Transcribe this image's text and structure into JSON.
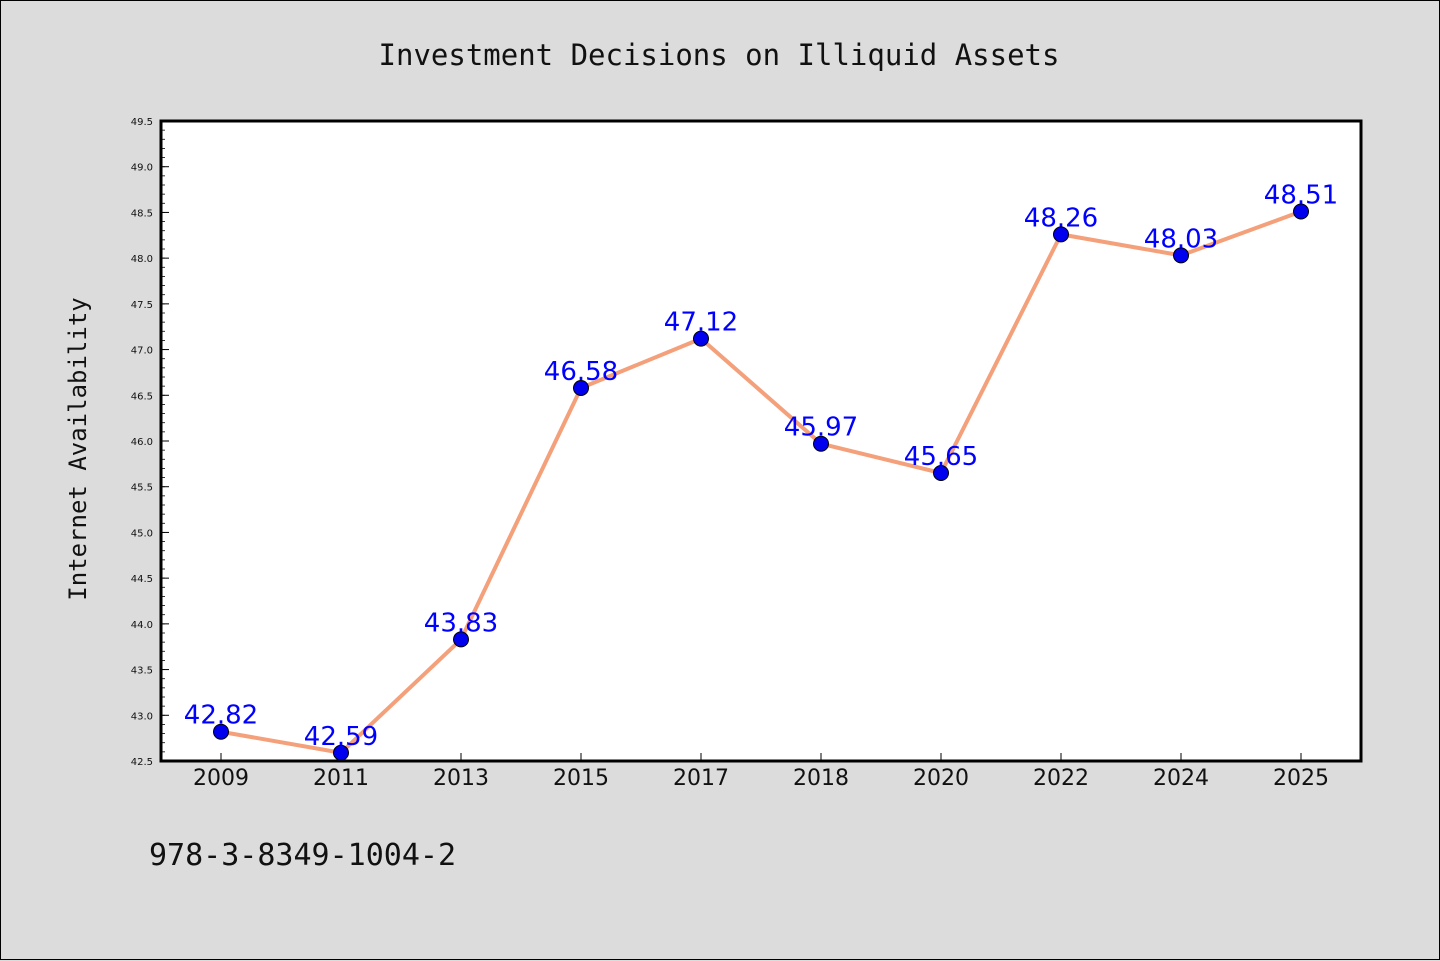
{
  "chart_data": {
    "type": "line",
    "title": "Investment Decisions on Illiquid Assets",
    "xlabel": "",
    "ylabel": "Internet Availability",
    "categories": [
      "2009",
      "2011",
      "2013",
      "2015",
      "2017",
      "2018",
      "2020",
      "2022",
      "2024",
      "2025"
    ],
    "series": [
      {
        "values": [
          42.82,
          42.59,
          43.83,
          46.58,
          47.12,
          45.97,
          45.65,
          48.26,
          48.03,
          48.51
        ],
        "labels": [
          "42.82",
          "42.59",
          "43.83",
          "46.58",
          "47.12",
          "45.97",
          "45.65",
          "48.26",
          "48.03",
          "48.51"
        ]
      }
    ],
    "ylim": [
      42.5,
      49.5
    ],
    "yticks": [
      "42.5",
      "43.0",
      "43.5",
      "44.0",
      "44.5",
      "45.0",
      "45.5",
      "46.0",
      "46.5",
      "47.0",
      "47.5",
      "48.0",
      "48.5",
      "49.0",
      "49.5"
    ],
    "grid": false,
    "line_color": "#f4a07a",
    "marker_color": "#0000ee",
    "label_color": "#0000ff"
  },
  "footer": {
    "text": "978-3-8349-1004-2"
  }
}
